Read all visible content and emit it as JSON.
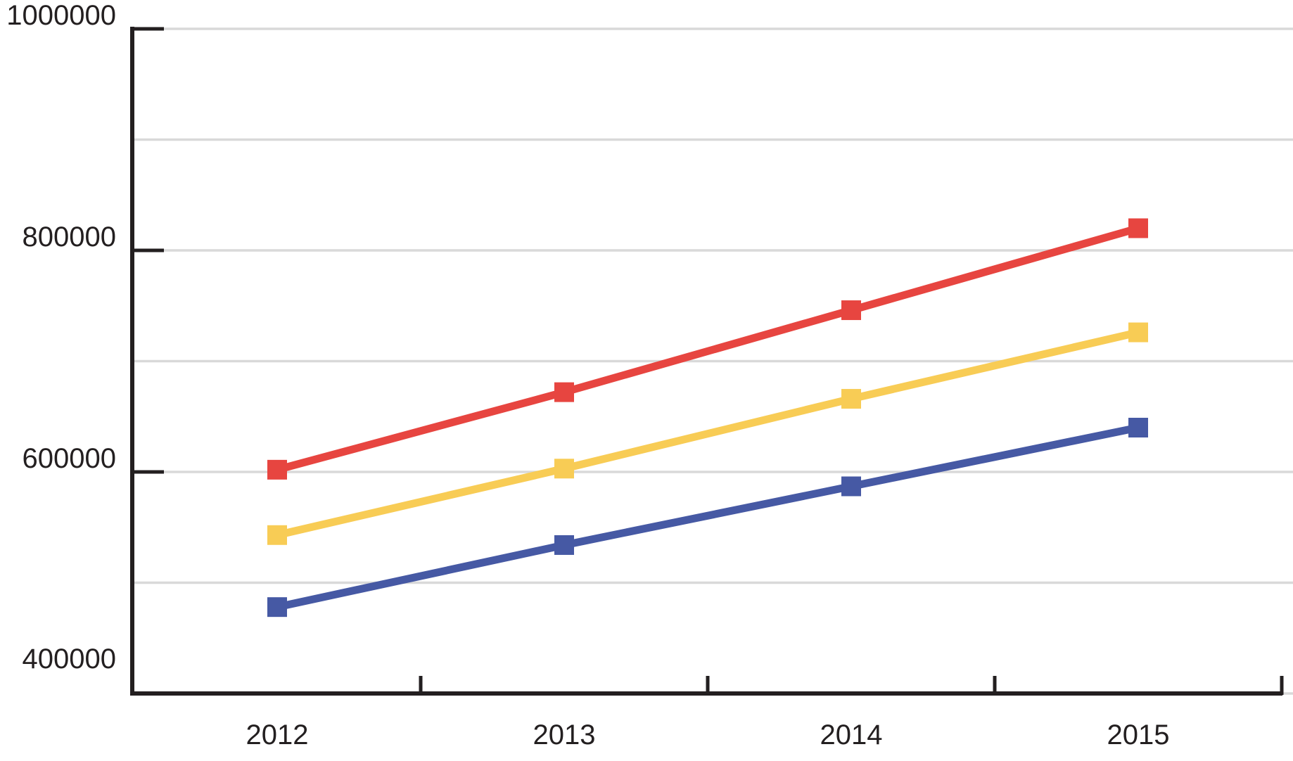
{
  "chart_data": {
    "type": "line",
    "title": "",
    "xlabel": "",
    "ylabel": "",
    "x": [
      "2012",
      "2013",
      "2014",
      "2015"
    ],
    "series": [
      {
        "name": "red-series",
        "color": "#E74540",
        "values": [
          602000,
          672000,
          746000,
          820000
        ]
      },
      {
        "name": "yellow-series",
        "color": "#F8CC55",
        "values": [
          543000,
          603000,
          666000,
          726000
        ]
      },
      {
        "name": "blue-series",
        "color": "#4659A4",
        "values": [
          478000,
          534000,
          587000,
          640000
        ]
      }
    ],
    "ylim": [
      400000,
      1000000
    ],
    "ytick_labels": [
      "1000000",
      "800000",
      "600000",
      "400000"
    ],
    "ytick_values": [
      1000000,
      800000,
      600000,
      400000
    ],
    "gridline_step": 100000,
    "grid": true,
    "legend_position": "none",
    "marker": "square",
    "colors": {
      "axis": "#231F20",
      "text": "#231F20",
      "gridline": "#D9D9D9",
      "background": "#FFFFFF"
    }
  }
}
